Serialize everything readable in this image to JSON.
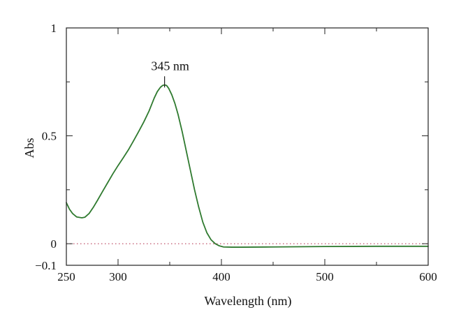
{
  "colors": {
    "series_line": "#2f7a2f",
    "baseline": "#c0506a",
    "axis": "#222222"
  },
  "chart_data": {
    "type": "line",
    "xlabel": "Wavelength (nm)",
    "ylabel": "Abs",
    "xlim": [
      250,
      600
    ],
    "ylim": [
      -0.1,
      1
    ],
    "xticks_major": [
      250,
      300,
      400,
      500,
      600
    ],
    "xticks_minor": [
      350,
      450,
      550
    ],
    "yticks_major": [
      -0.1,
      0,
      0.5,
      1
    ],
    "yticks_minor": [
      0.25,
      0.75
    ],
    "xtick_labels": [
      "250",
      "300",
      "400",
      "500",
      "600"
    ],
    "ytick_labels": [
      "−0.1",
      "0",
      "0.5",
      "1"
    ],
    "grid": false,
    "reference_line": {
      "y": 0,
      "style": "dotted"
    },
    "annotations": [
      {
        "text": "345 nm",
        "x": 345,
        "y": 0.75
      }
    ],
    "series": [
      {
        "x": [
          250,
          253,
          256,
          260,
          265,
          268,
          272,
          276,
          280,
          285,
          290,
          295,
          300,
          305,
          310,
          315,
          320,
          325,
          330,
          335,
          338,
          341,
          343,
          345,
          347,
          349,
          352,
          355,
          358,
          362,
          366,
          370,
          374,
          378,
          382,
          386,
          390,
          394,
          398,
          402,
          410,
          420,
          450,
          500,
          550,
          600
        ],
        "y": [
          0.19,
          0.16,
          0.14,
          0.124,
          0.12,
          0.123,
          0.14,
          0.168,
          0.2,
          0.242,
          0.283,
          0.324,
          0.362,
          0.398,
          0.435,
          0.477,
          0.52,
          0.565,
          0.615,
          0.675,
          0.705,
          0.725,
          0.733,
          0.736,
          0.733,
          0.72,
          0.69,
          0.65,
          0.6,
          0.52,
          0.43,
          0.34,
          0.25,
          0.17,
          0.1,
          0.05,
          0.018,
          0.0,
          -0.01,
          -0.015,
          -0.016,
          -0.016,
          -0.015,
          -0.013,
          -0.012,
          -0.012
        ]
      }
    ]
  }
}
